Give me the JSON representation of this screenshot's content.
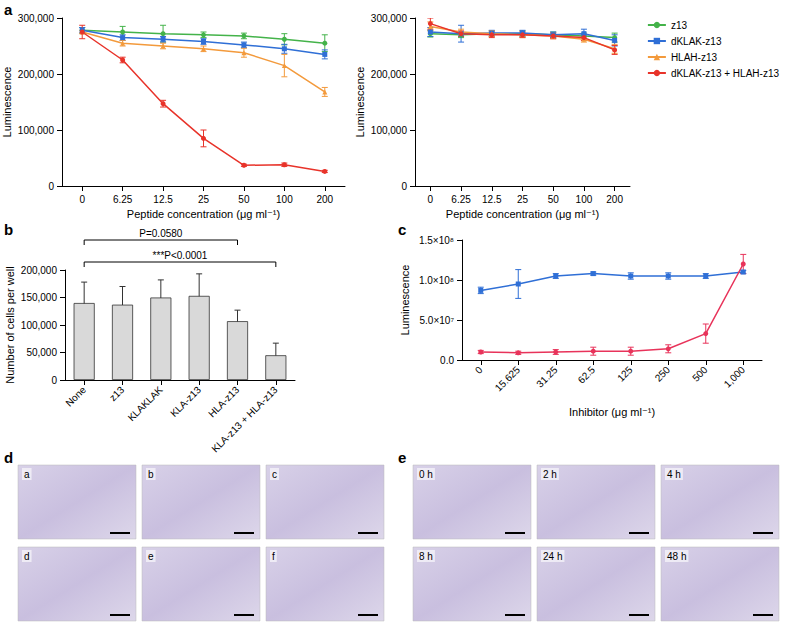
{
  "chart_data": [
    {
      "type": "line",
      "title": "a",
      "x_label": "Peptide concentration (μg ml⁻¹)",
      "y_label": "Luminescence",
      "categories": [
        "0",
        "6.25",
        "12.5",
        "25",
        "50",
        "100",
        "200"
      ],
      "series": [
        {
          "name": "z13",
          "color": "#44b34a",
          "marker": "circle",
          "values": [
            278000,
            275000,
            272000,
            270000,
            268000,
            262000,
            255000
          ],
          "errors": [
            5000,
            10000,
            15000,
            5000,
            5000,
            10000,
            15000
          ]
        },
        {
          "name": "dKLAK-z13",
          "color": "#2f6fd6",
          "marker": "rect",
          "values": [
            278000,
            265000,
            262000,
            258000,
            252000,
            245000,
            235000
          ],
          "errors": [
            5000,
            5000,
            5000,
            5000,
            5000,
            8000,
            8000
          ]
        },
        {
          "name": "HLAH-z13",
          "color": "#f39a3c",
          "marker": "triangle",
          "values": [
            275000,
            255000,
            250000,
            245000,
            238000,
            215000,
            168000
          ],
          "errors": [
            3000,
            5000,
            5000,
            5000,
            8000,
            20000,
            8000
          ]
        },
        {
          "name": "dKLAK-z13 + HLAH-z13",
          "color": "#e8332a",
          "marker": "circle",
          "values": [
            275000,
            225000,
            147000,
            85000,
            37000,
            38000,
            26000
          ],
          "errors": [
            12000,
            5000,
            6000,
            15000,
            2000,
            3000,
            2000
          ]
        }
      ],
      "ylim": [
        0,
        300000
      ],
      "yticks": [
        0,
        {
          "value": 100000,
          "label": "100,000"
        },
        {
          "value": 200000,
          "label": "200,000"
        },
        {
          "value": 300000,
          "label": "300,000"
        }
      ],
      "grid": false
    },
    {
      "type": "line",
      "x_label": "Peptide concentration (μg ml⁻¹)",
      "y_label": "Luminescence",
      "categories": [
        "0",
        "6.25",
        "12.5",
        "25",
        "50",
        "100",
        "200"
      ],
      "series": [
        {
          "name": "z13",
          "color": "#44b34a",
          "marker": "circle",
          "values": [
            272000,
            270000,
            272000,
            272000,
            270000,
            268000,
            265000
          ],
          "errors": [
            6000,
            5000,
            5000,
            5000,
            5000,
            5000,
            8000
          ]
        },
        {
          "name": "dKLAK-z13",
          "color": "#2f6fd6",
          "marker": "rect",
          "values": [
            275000,
            272000,
            273000,
            273000,
            270000,
            272000,
            260000
          ],
          "errors": [
            8000,
            15000,
            5000,
            5000,
            5000,
            8000,
            10000
          ]
        },
        {
          "name": "HLAH-z13",
          "color": "#f39a3c",
          "marker": "triangle",
          "values": [
            285000,
            275000,
            272000,
            270000,
            268000,
            262000,
            245000
          ],
          "errors": [
            8000,
            5000,
            5000,
            5000,
            5000,
            5000,
            8000
          ]
        },
        {
          "name": "dKLAK-z13 + HLAH-z13",
          "color": "#e8332a",
          "marker": "circle",
          "values": [
            290000,
            272000,
            270000,
            270000,
            268000,
            265000,
            243000
          ],
          "errors": [
            10000,
            5000,
            5000,
            5000,
            5000,
            5000,
            8000
          ]
        }
      ],
      "ylim": [
        0,
        300000
      ],
      "yticks": [
        0,
        {
          "value": 100000,
          "label": "100,000"
        },
        {
          "value": 200000,
          "label": "200,000"
        },
        {
          "value": 300000,
          "label": "300,000"
        }
      ],
      "grid": false,
      "legend": "right"
    },
    {
      "type": "bar",
      "title": "b",
      "y_label": "Number of cells per well",
      "categories": [
        "None",
        "z13",
        "KLAKLAK",
        "KLA-z13",
        "HLA-z13",
        "KLA-z13 + HLA-z13"
      ],
      "values": [
        140000,
        137000,
        150000,
        153000,
        107000,
        45000
      ],
      "errors": [
        38000,
        33000,
        32000,
        40000,
        20000,
        22000
      ],
      "color": "#d9d9d9",
      "ylim": [
        0,
        200000
      ],
      "yticks": [
        0,
        {
          "value": 50000,
          "label": "50,000"
        },
        {
          "value": 100000,
          "label": "100,000"
        },
        {
          "value": 150000,
          "label": "150,000"
        },
        {
          "value": 200000,
          "label": "200,000"
        }
      ],
      "annotations": [
        {
          "text": "P=0.0580",
          "from": "None",
          "to": "HLA-z13"
        },
        {
          "text": "***P<0.0001",
          "from": "None",
          "to": "KLA-z13 + HLA-z13"
        }
      ],
      "grid": false
    },
    {
      "type": "line",
      "title": "c",
      "x_label": "Inhibitor (μg ml⁻¹)",
      "y_label": "Luminescence",
      "categories": [
        "0",
        "15.625",
        "31.25",
        "62.5",
        "125",
        "250",
        "500",
        "1,000"
      ],
      "series": [
        {
          "color": "#2f6fd6",
          "marker": "rect",
          "values": [
            87000000,
            95000000,
            105000000,
            108000000,
            105000000,
            105000000,
            105000000,
            110000000
          ],
          "errors": [
            4000000,
            18000000,
            3000000,
            2000000,
            4000000,
            4000000,
            3000000,
            2000000
          ]
        },
        {
          "color": "#e8335a",
          "marker": "circle",
          "values": [
            10000000,
            9000000,
            10000000,
            11000000,
            11000000,
            14000000,
            33000000,
            120000000
          ],
          "errors": [
            2000000,
            2000000,
            3000000,
            5000000,
            5000000,
            5000000,
            12000000,
            12000000
          ]
        }
      ],
      "ylim": [
        0,
        150000000
      ],
      "yticks": [
        {
          "value": 0,
          "label": "0.0"
        },
        {
          "value": 50000000,
          "label": "5.0×10⁷"
        },
        {
          "value": 100000000,
          "label": "1.0×10⁸"
        },
        {
          "value": 150000000,
          "label": "1.5×10⁸"
        }
      ],
      "grid": false
    },
    {
      "type": "image_grid",
      "title": "d",
      "panels": [
        "a",
        "b",
        "c",
        "d",
        "e",
        "f"
      ]
    },
    {
      "type": "image_grid",
      "title": "e",
      "panels": [
        "0 h",
        "2 h",
        "4 h",
        "8 h",
        "24 h",
        "48 h"
      ]
    }
  ]
}
